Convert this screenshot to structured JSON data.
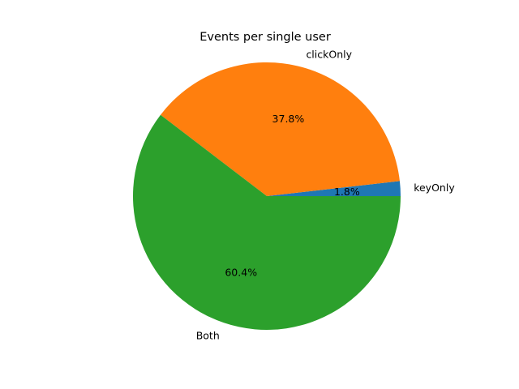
{
  "chart_data": {
    "type": "pie",
    "title": "Events per single user",
    "slices": [
      {
        "label": "keyOnly",
        "value": 1.8,
        "pct_label": "1.8%",
        "color": "#1f77b4"
      },
      {
        "label": "clickOnly",
        "value": 37.8,
        "pct_label": "37.8%",
        "color": "#ff7f0e"
      },
      {
        "label": "Both",
        "value": 60.4,
        "pct_label": "60.4%",
        "color": "#2ca02c"
      }
    ],
    "start_angle_deg": 0,
    "direction": "counterclockwise",
    "legend": "none"
  }
}
